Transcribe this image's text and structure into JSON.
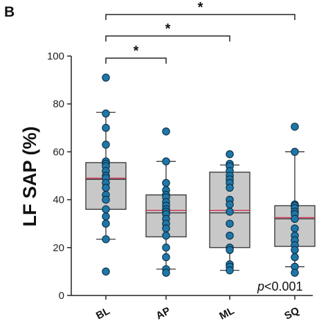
{
  "panel_label": "B",
  "p_value_text": {
    "italic": "p",
    "rest": "<0.001"
  },
  "chart_data": {
    "type": "box",
    "ylabel": "LF SAP (%)",
    "xlabel": "",
    "ylim": [
      0,
      100
    ],
    "yticks": [
      0,
      20,
      40,
      60,
      80,
      100
    ],
    "categories": [
      "BL",
      "AP",
      "ML",
      "SQ"
    ],
    "boxes": [
      {
        "category": "BL",
        "whisker_low": 23.5,
        "q1": 36,
        "median": 48.5,
        "mean": 49,
        "q3": 55.5,
        "whisker_high": 76.5
      },
      {
        "category": "AP",
        "whisker_low": 11,
        "q1": 24.5,
        "median": 34.5,
        "mean": 35.5,
        "q3": 42,
        "whisker_high": 56
      },
      {
        "category": "ML",
        "whisker_low": 10.5,
        "q1": 20,
        "median": 34.5,
        "mean": 35.5,
        "q3": 51.5,
        "whisker_high": 54.5
      },
      {
        "category": "SQ",
        "whisker_low": 12,
        "q1": 20.5,
        "median": 32,
        "mean": 32.5,
        "q3": 37.5,
        "whisker_high": 60
      }
    ],
    "points": [
      {
        "category": "BL",
        "values": [
          91,
          76,
          70,
          63,
          56,
          55,
          54,
          52,
          50,
          49,
          47,
          45,
          42,
          40,
          36,
          33,
          30,
          23.5,
          10
        ]
      },
      {
        "category": "AP",
        "values": [
          68.5,
          56,
          47,
          44,
          42,
          41,
          39,
          37.5,
          36,
          35,
          34,
          32,
          30,
          28,
          25,
          20,
          16,
          11,
          9.5
        ]
      },
      {
        "category": "ML",
        "values": [
          59,
          55,
          54,
          52,
          50,
          48.5,
          47,
          45,
          40,
          38,
          35,
          30,
          25,
          20,
          19,
          13,
          12,
          10.5
        ]
      },
      {
        "category": "SQ",
        "values": [
          70.5,
          60,
          38,
          37.5,
          36.5,
          35,
          34,
          32,
          28,
          25,
          23,
          21,
          19,
          16,
          12,
          9.5
        ]
      }
    ],
    "significance": [
      {
        "from": "BL",
        "to": "AP",
        "label": "*"
      },
      {
        "from": "BL",
        "to": "ML",
        "label": "*"
      },
      {
        "from": "BL",
        "to": "SQ",
        "label": "*"
      }
    ],
    "colors": {
      "box_fill": "#c8c8c8",
      "point_fill": "#1f77a8",
      "mean_line": "#d0375a",
      "median_line": "#333333"
    },
    "grid": false
  }
}
